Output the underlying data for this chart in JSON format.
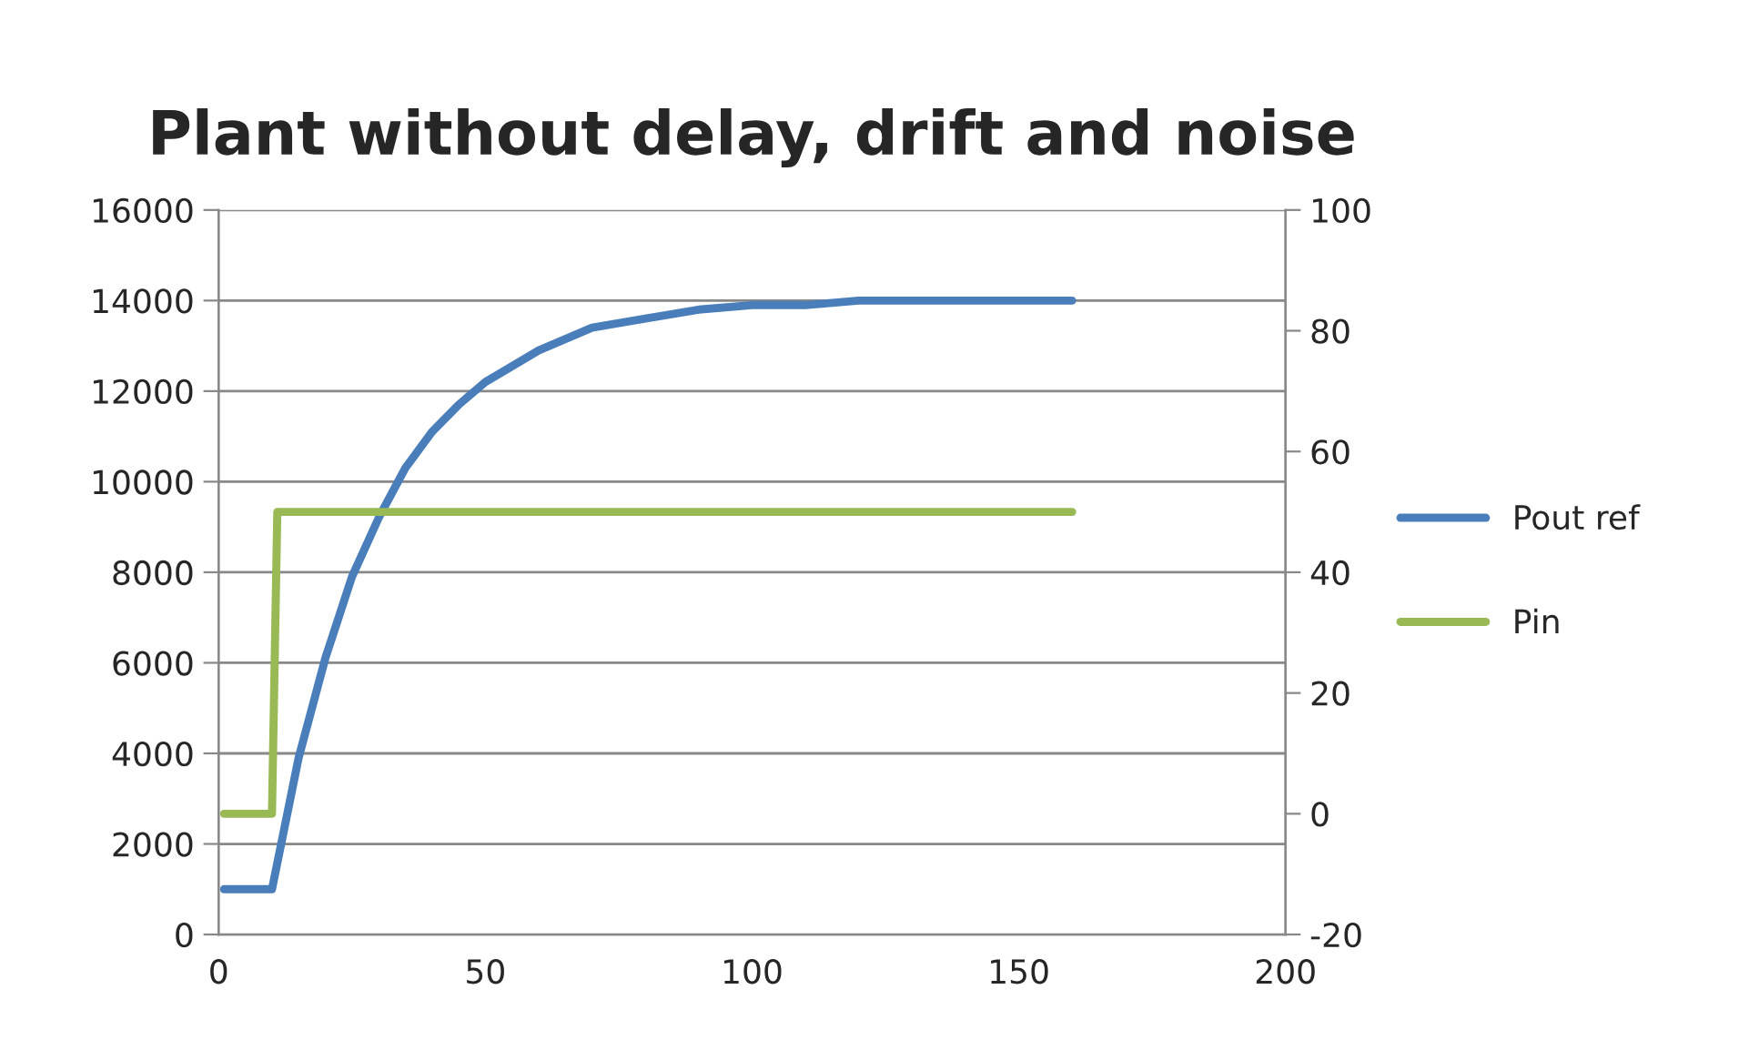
{
  "chart_data": {
    "type": "line",
    "title": "Plant without delay, drift and noise",
    "series": [
      {
        "name": "Pout ref",
        "color": "#4a7ebb",
        "x": [
          1,
          10,
          15,
          20,
          25,
          30,
          35,
          40,
          45,
          50,
          60,
          70,
          80,
          90,
          100,
          110,
          120,
          130,
          140,
          150,
          160
        ],
        "values": [
          1000,
          1000,
          3900,
          6100,
          7900,
          9200,
          10300,
          11100,
          11700,
          12200,
          12900,
          13400,
          13600,
          13800,
          13900,
          13900,
          14000,
          14000,
          14000,
          14000,
          14000
        ]
      },
      {
        "name": "Pin",
        "color": "#98b954",
        "axis": "y2",
        "x": [
          1,
          10,
          11,
          160
        ],
        "values": [
          0,
          0,
          50,
          50
        ]
      }
    ],
    "xlim": [
      0,
      200
    ],
    "xticks": [
      0,
      50,
      100,
      150,
      200
    ],
    "ylim": [
      0,
      16000
    ],
    "yticks": [
      0,
      2000,
      4000,
      6000,
      8000,
      10000,
      12000,
      14000,
      16000
    ],
    "y2lim": [
      -20,
      100
    ],
    "y2ticks": [
      -20,
      0,
      20,
      40,
      60,
      80,
      100
    ],
    "grid": "y",
    "legend": "right",
    "marker": "none",
    "line_style": "solid"
  }
}
